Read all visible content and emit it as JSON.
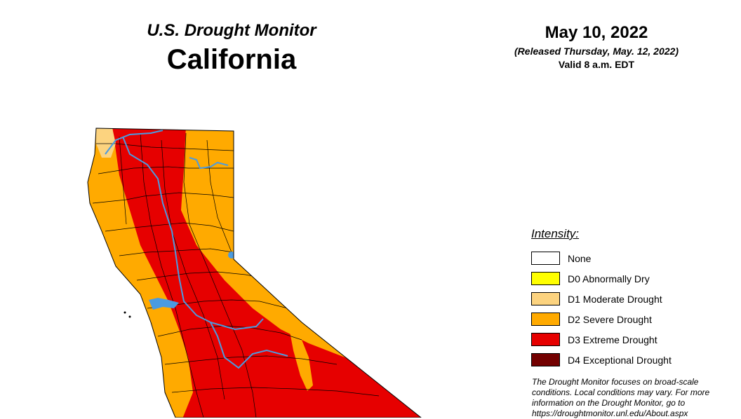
{
  "header": {
    "subtitle": "U.S. Drought Monitor",
    "region": "California"
  },
  "date_info": {
    "date": "May 10, 2022",
    "released": "(Released Thursday, May. 12, 2022)",
    "valid": "Valid 8 a.m. EDT"
  },
  "legend": {
    "title": "Intensity:",
    "items": [
      {
        "label": "None",
        "color": "#ffffff"
      },
      {
        "label": "D0 Abnormally Dry",
        "color": "#ffff00"
      },
      {
        "label": "D1 Moderate Drought",
        "color": "#fcd37f"
      },
      {
        "label": "D2 Severe Drought",
        "color": "#ffaa00"
      },
      {
        "label": "D3 Extreme Drought",
        "color": "#e60000"
      },
      {
        "label": "D4 Exceptional Drought",
        "color": "#730000"
      }
    ]
  },
  "note": {
    "line1": "The Drought Monitor focuses on broad-scale",
    "line2": "conditions. Local conditions may vary. For more",
    "line3": "information on the Drought Monitor, go to",
    "line4": "https://droughtmonitor.unl.edu/About.aspx"
  },
  "map": {
    "colors": {
      "d1": "#fcd37f",
      "d2": "#ffaa00",
      "d3": "#e60000",
      "county_border": "#000000",
      "water": "#4b9be0"
    }
  }
}
